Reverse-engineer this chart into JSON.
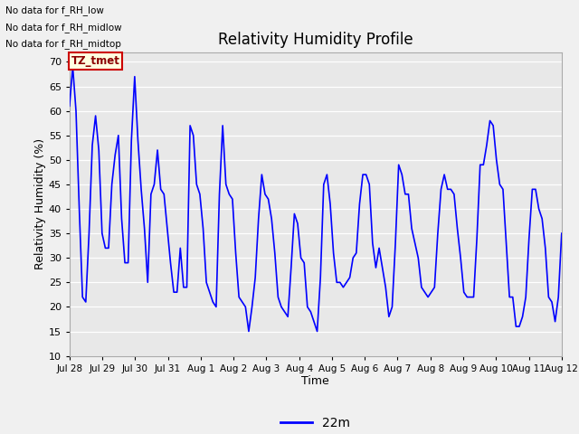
{
  "title": "Relativity Humidity Profile",
  "xlabel": "Time",
  "ylabel": "Relativity Humidity (%)",
  "ylim": [
    10,
    72
  ],
  "yticks": [
    10,
    15,
    20,
    25,
    30,
    35,
    40,
    45,
    50,
    55,
    60,
    65,
    70
  ],
  "line_color": "#0000ff",
  "line_width": 1.2,
  "legend_label": "22m",
  "legend_line_color": "#0000ff",
  "fig_bg_color": "#f0f0f0",
  "plot_bg_color": "#e8e8e8",
  "annotations": [
    "No data for f_RH_low",
    "No data for f_RH_midlow",
    "No data for f_RH_midtop"
  ],
  "tz_label": "TZ_tmet",
  "tick_labels": [
    "Jul 28",
    "Jul 29",
    "Jul 30",
    "Jul 31",
    "Aug 1",
    "Aug 2",
    "Aug 3",
    "Aug 4",
    "Aug 5",
    "Aug 6",
    "Aug 7",
    "Aug 8",
    "Aug 9",
    "Aug 10",
    "Aug 11",
    "Aug 12"
  ],
  "rh_values": [
    61,
    69,
    60,
    40,
    22,
    21,
    35,
    53,
    59,
    52,
    35,
    32,
    32,
    45,
    51,
    55,
    38,
    29,
    29,
    54,
    67,
    54,
    44,
    36,
    25,
    43,
    45,
    52,
    44,
    43,
    36,
    29,
    23,
    23,
    32,
    24,
    24,
    57,
    55,
    45,
    43,
    36,
    25,
    23,
    21,
    20,
    43,
    57,
    45,
    43,
    42,
    31,
    22,
    21,
    20,
    15,
    20,
    26,
    38,
    47,
    43,
    42,
    38,
    31,
    22,
    20,
    19,
    18,
    28,
    39,
    37,
    30,
    29,
    20,
    19,
    17,
    15,
    26,
    45,
    47,
    41,
    31,
    25,
    25,
    24,
    25,
    26,
    30,
    31,
    41,
    47,
    47,
    45,
    33,
    28,
    32,
    28,
    24,
    18,
    20,
    33,
    49,
    47,
    43,
    43,
    36,
    33,
    30,
    24,
    23,
    22,
    23,
    24,
    35,
    44,
    47,
    44,
    44,
    43,
    36,
    30,
    23,
    22,
    22,
    22,
    34,
    49,
    49,
    53,
    58,
    57,
    50,
    45,
    44,
    33,
    22,
    22,
    16,
    16,
    18,
    22,
    34,
    44,
    44,
    40,
    38,
    32,
    22,
    21,
    17,
    22,
    35
  ]
}
